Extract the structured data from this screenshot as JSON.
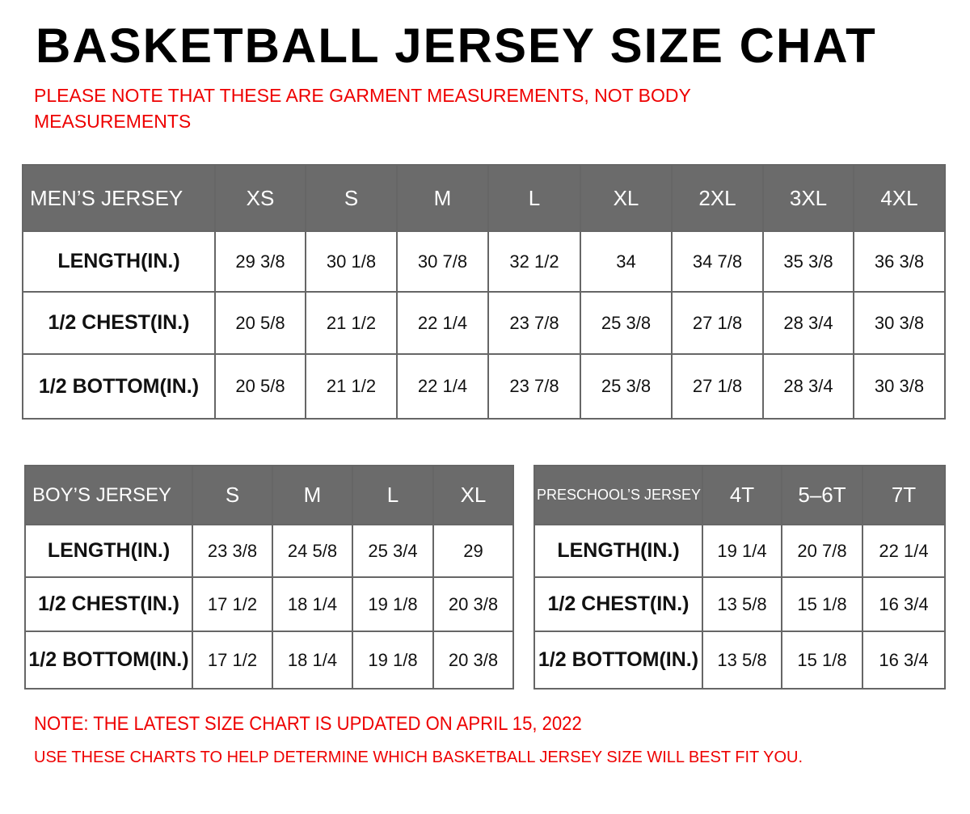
{
  "header": {
    "title": "BASKETBALL JERSEY SIZE CHAT",
    "note": "PLEASE NOTE THAT THESE ARE GARMENT MEASUREMENTS, NOT BODY MEASUREMENTS"
  },
  "tables": [
    {
      "columns": [
        "MEN’S JERSEY",
        "XS",
        "S",
        "M",
        "L",
        "XL",
        "2XL",
        "3XL",
        "4XL"
      ],
      "rows": [
        [
          "LENGTH(IN.)",
          "29 3/8",
          "30 1/8",
          "30 7/8",
          "32 1/2",
          "34",
          "34 7/8",
          "35 3/8",
          "36 3/8"
        ],
        [
          "1/2 CHEST(IN.)",
          "20 5/8",
          "21 1/2",
          "22 1/4",
          "23 7/8",
          "25 3/8",
          "27 1/8",
          "28 3/4",
          "30 3/8"
        ],
        [
          "1/2 BOTTOM(IN.)",
          "20 5/8",
          "21 1/2",
          "22 1/4",
          "23 7/8",
          "25 3/8",
          "27 1/8",
          "28 3/4",
          "30 3/8"
        ]
      ]
    },
    {
      "columns": [
        "BOY’S JERSEY",
        "S",
        "M",
        "L",
        "XL"
      ],
      "rows": [
        [
          "LENGTH(IN.)",
          "23 3/8",
          "24 5/8",
          "25 3/4",
          "29"
        ],
        [
          "1/2 CHEST(IN.)",
          "17 1/2",
          "18 1/4",
          "19 1/8",
          "20 3/8"
        ],
        [
          "1/2 BOTTOM(IN.)",
          "17 1/2",
          "18 1/4",
          "19 1/8",
          "20 3/8"
        ]
      ]
    },
    {
      "columns": [
        "PRESCHOOL’S JERSEY",
        "4T",
        "5–6T",
        "7T"
      ],
      "rows": [
        [
          "LENGTH(IN.)",
          "19 1/4",
          "20 7/8",
          "22 1/4"
        ],
        [
          "1/2 CHEST(IN.)",
          "13 5/8",
          "15 1/8",
          "16 3/4"
        ],
        [
          "1/2 BOTTOM(IN.)",
          "13 5/8",
          "15 1/8",
          "16 3/4"
        ]
      ]
    }
  ],
  "footer": {
    "update_note": "NOTE: THE LATEST SIZE CHART IS UPDATED ON APRIL 15, 2022",
    "usage_note": "USE THESE CHARTS TO HELP DETERMINE WHICH  BASKETBALL JERSEY  SIZE WILL BEST FIT YOU."
  }
}
